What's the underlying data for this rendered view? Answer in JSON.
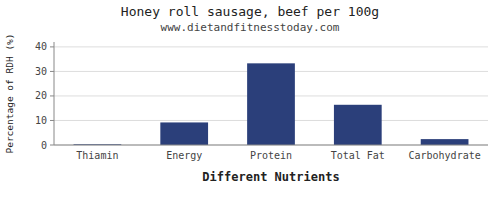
{
  "chart_data": {
    "type": "bar",
    "title": "Honey roll sausage, beef per 100g",
    "subtitle": "www.dietandfitnesstoday.com",
    "xlabel": "Different Nutrients",
    "ylabel": "Percentage of RDH (%)",
    "categories": [
      "Thiamin",
      "Energy",
      "Protein",
      "Total Fat",
      "Carbohydrate"
    ],
    "values": [
      0.3,
      9.2,
      33.3,
      16.4,
      2.4
    ],
    "color": "#2b3f7a",
    "ylim": [
      0,
      42
    ],
    "yticks": [
      0,
      10,
      20,
      30,
      40
    ],
    "grid": true
  }
}
